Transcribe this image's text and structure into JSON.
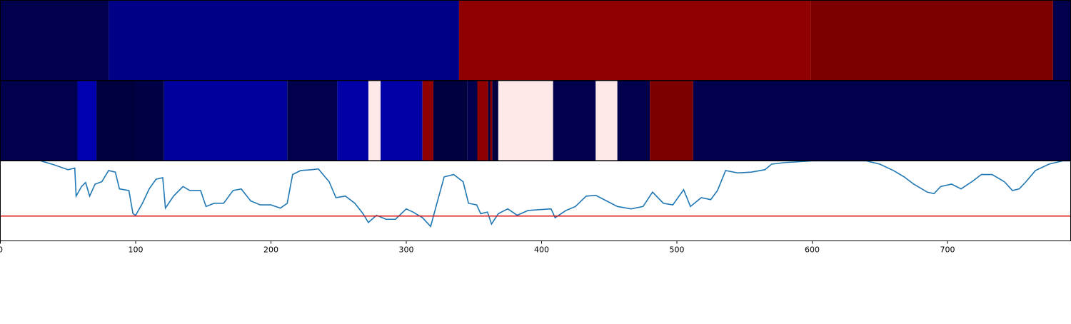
{
  "chart_data": [
    {
      "type": "strip",
      "xlim": [
        0,
        791
      ],
      "segments": [
        {
          "start": 0,
          "end": 80,
          "color": "#00004c"
        },
        {
          "start": 80,
          "end": 339,
          "color": "#000086"
        },
        {
          "start": 339,
          "end": 599,
          "color": "#8f0000"
        },
        {
          "start": 599,
          "end": 778,
          "color": "#7c0000"
        },
        {
          "start": 778,
          "end": 791,
          "color": "#00004c"
        }
      ]
    },
    {
      "type": "strip",
      "xlim": [
        0,
        791
      ],
      "segments": [
        {
          "start": 0,
          "end": 57,
          "color": "#00004c"
        },
        {
          "start": 57,
          "end": 71,
          "color": "#0000b0"
        },
        {
          "start": 71,
          "end": 100,
          "color": "#00003e"
        },
        {
          "start": 100,
          "end": 121,
          "color": "#000046"
        },
        {
          "start": 121,
          "end": 212,
          "color": "#00009e"
        },
        {
          "start": 212,
          "end": 249,
          "color": "#00004c"
        },
        {
          "start": 249,
          "end": 272,
          "color": "#0000a6"
        },
        {
          "start": 272,
          "end": 281,
          "color": "#ffe8e8"
        },
        {
          "start": 281,
          "end": 312,
          "color": "#0000a6"
        },
        {
          "start": 312,
          "end": 320,
          "color": "#8f0000"
        },
        {
          "start": 320,
          "end": 345,
          "color": "#00003e"
        },
        {
          "start": 345,
          "end": 352.5,
          "color": "#00004c"
        },
        {
          "start": 352.5,
          "end": 360.5,
          "color": "#8f0000"
        },
        {
          "start": 360.5,
          "end": 362,
          "color": "#00003e"
        },
        {
          "start": 362,
          "end": 363.5,
          "color": "#8f0000"
        },
        {
          "start": 363.5,
          "end": 368,
          "color": "#00003e"
        },
        {
          "start": 368,
          "end": 408.5,
          "color": "#ffe8e8"
        },
        {
          "start": 408.5,
          "end": 440,
          "color": "#00004c"
        },
        {
          "start": 440,
          "end": 456,
          "color": "#ffe8e8"
        },
        {
          "start": 456,
          "end": 480,
          "color": "#00004c"
        },
        {
          "start": 480,
          "end": 512,
          "color": "#7c0000"
        },
        {
          "start": 512,
          "end": 791,
          "color": "#00004c"
        }
      ]
    },
    {
      "type": "line",
      "xlim": [
        0,
        791
      ],
      "ylim": [
        0,
        1
      ],
      "xticks": [
        0,
        100,
        200,
        300,
        400,
        500,
        600,
        700
      ],
      "threshold": 0.31,
      "threshold_color": "#e01010",
      "series": [
        {
          "color": "#1f77b4",
          "x": [
            30,
            40,
            50,
            55,
            56,
            60,
            63,
            66,
            70,
            75,
            80,
            85,
            88,
            95,
            98,
            100,
            105,
            110,
            115,
            120,
            122,
            128,
            135,
            140,
            148,
            152,
            158,
            165,
            172,
            178,
            185,
            192,
            200,
            207,
            212,
            216,
            222,
            230,
            235,
            243,
            248,
            255,
            262,
            268,
            272,
            278,
            285,
            292,
            300,
            305,
            312,
            318,
            322,
            328,
            335,
            342,
            346,
            352,
            355,
            360,
            363,
            368,
            375,
            382,
            390,
            398,
            407,
            410,
            418,
            425,
            433,
            440,
            448,
            456,
            466,
            475,
            482,
            490,
            497,
            505,
            510,
            518,
            525,
            530,
            536,
            545,
            555,
            565,
            570,
            580,
            600,
            620,
            640,
            650,
            660,
            668,
            675,
            685,
            690,
            695,
            703,
            710,
            718,
            725,
            733,
            742,
            748,
            753,
            758,
            765,
            775,
            785,
            791
          ],
          "values": [
            1.0,
            0.95,
            0.89,
            0.91,
            0.56,
            0.68,
            0.73,
            0.56,
            0.71,
            0.74,
            0.88,
            0.86,
            0.65,
            0.63,
            0.34,
            0.32,
            0.47,
            0.65,
            0.77,
            0.79,
            0.41,
            0.56,
            0.68,
            0.63,
            0.63,
            0.43,
            0.47,
            0.47,
            0.63,
            0.65,
            0.5,
            0.45,
            0.45,
            0.41,
            0.47,
            0.83,
            0.88,
            0.89,
            0.9,
            0.74,
            0.54,
            0.56,
            0.47,
            0.34,
            0.23,
            0.32,
            0.27,
            0.27,
            0.4,
            0.36,
            0.29,
            0.18,
            0.43,
            0.8,
            0.83,
            0.74,
            0.47,
            0.45,
            0.34,
            0.36,
            0.21,
            0.34,
            0.4,
            0.32,
            0.38,
            0.39,
            0.4,
            0.29,
            0.38,
            0.43,
            0.56,
            0.57,
            0.5,
            0.43,
            0.4,
            0.43,
            0.61,
            0.47,
            0.45,
            0.64,
            0.43,
            0.54,
            0.516,
            0.63,
            0.88,
            0.85,
            0.86,
            0.89,
            0.96,
            0.98,
            1.0,
            1.0,
            1.0,
            0.96,
            0.88,
            0.8,
            0.71,
            0.61,
            0.59,
            0.68,
            0.71,
            0.65,
            0.74,
            0.83,
            0.83,
            0.74,
            0.63,
            0.65,
            0.74,
            0.88,
            0.96,
            1.0,
            1.0
          ]
        }
      ]
    }
  ]
}
